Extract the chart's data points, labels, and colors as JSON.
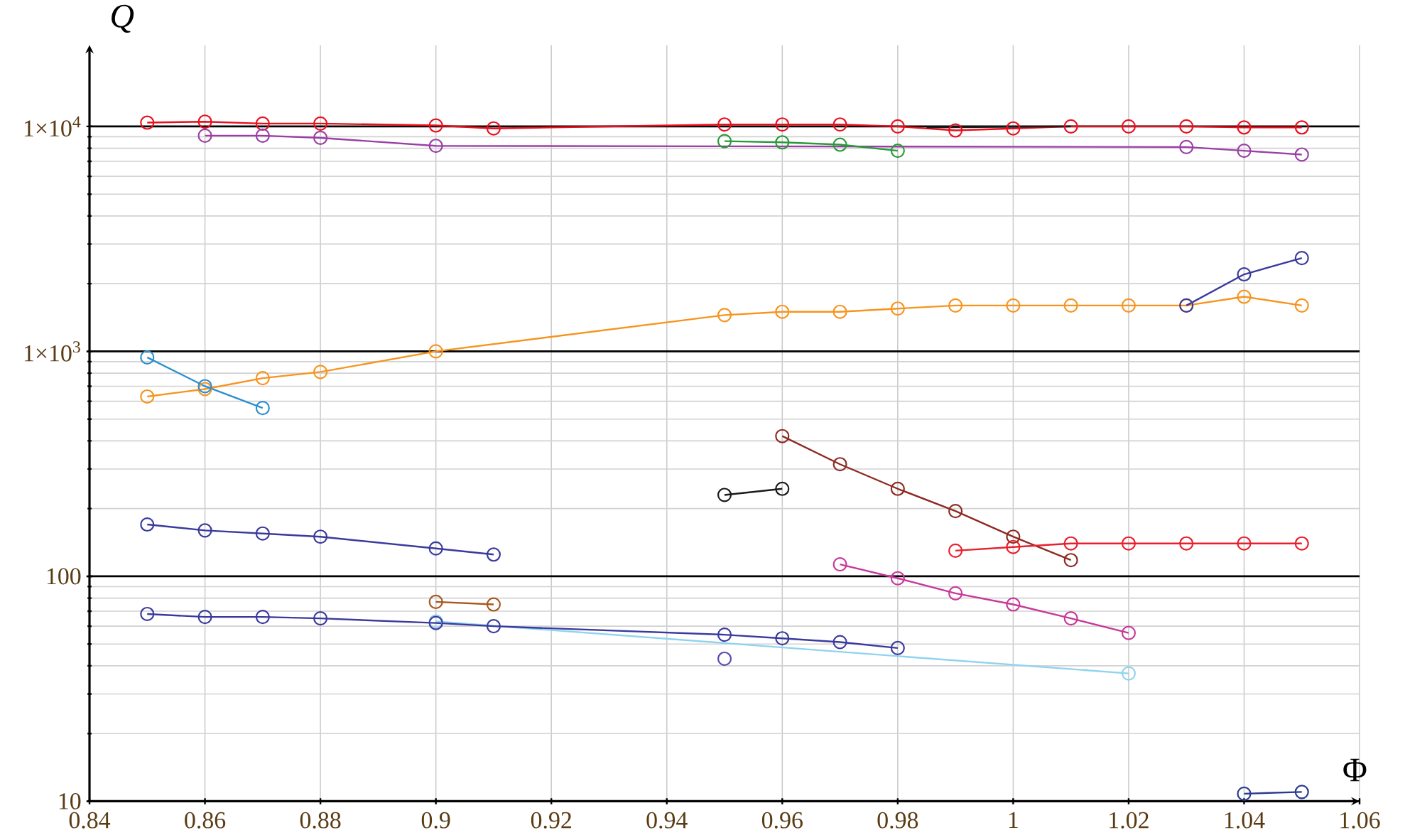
{
  "chart_data": {
    "type": "line",
    "xlabel": "Φ",
    "ylabel": "Q",
    "log": "y",
    "grid": true,
    "marker": "circle",
    "line_style": "solid",
    "xlim": [
      0.84,
      1.06
    ],
    "ylim": [
      10,
      23000
    ],
    "xticks": [
      0.84,
      0.86,
      0.88,
      0.9,
      0.92,
      0.94,
      0.96,
      0.98,
      1,
      1.02,
      1.04,
      1.06
    ],
    "yticks": [
      10,
      100,
      {
        "value": 1000,
        "label": "1×10$^{3}$"
      },
      {
        "value": 10000,
        "label": "1×10$^{4}$"
      }
    ],
    "series": [
      {
        "color": "#e8101e",
        "x": [
          0.85,
          0.86,
          0.87,
          0.88,
          0.9,
          0.91,
          0.95,
          0.96,
          0.97,
          0.98,
          0.99,
          1.0,
          1.01,
          1.02,
          1.03,
          1.04,
          1.05
        ],
        "values": [
          10400,
          10500,
          10300,
          10300,
          10100,
          9800,
          10200,
          10200,
          10200,
          10000,
          9600,
          9800,
          10000,
          10000,
          10000,
          9900,
          9900
        ]
      },
      {
        "color": "#1a1a1a",
        "marker": "none",
        "x": [
          0.985,
          1.01
        ],
        "values": [
          9900,
          10000
        ]
      },
      {
        "color": "#9b3fa6",
        "x": [
          0.86,
          0.87,
          0.88,
          0.9,
          1.03,
          1.04,
          1.05
        ],
        "values": [
          9100,
          9100,
          8900,
          8200,
          8100,
          7800,
          7500
        ]
      },
      {
        "color": "#2a9a3a",
        "x": [
          0.95,
          0.96,
          0.97,
          0.98
        ],
        "values": [
          8600,
          8500,
          8300,
          7800
        ]
      },
      {
        "color": "#f7941d",
        "x": [
          0.85,
          0.86,
          0.87,
          0.88,
          0.9,
          0.95,
          0.96,
          0.97,
          0.98,
          0.99,
          1.0,
          1.01,
          1.02,
          1.03,
          1.04,
          1.05
        ],
        "values": [
          630,
          680,
          760,
          810,
          1000,
          1450,
          1500,
          1500,
          1550,
          1600,
          1600,
          1600,
          1600,
          1600,
          1750,
          1600
        ]
      },
      {
        "color": "#3a3a9e",
        "x": [
          1.03,
          1.04,
          1.05
        ],
        "values": [
          1600,
          2200,
          2600
        ]
      },
      {
        "color": "#2b8fd0",
        "x": [
          0.85,
          0.86,
          0.87
        ],
        "values": [
          940,
          700,
          560
        ]
      },
      {
        "color": "#3a3a9e",
        "x": [
          0.85,
          0.86,
          0.87,
          0.88,
          0.9,
          0.91
        ],
        "values": [
          170,
          160,
          155,
          150,
          133,
          125
        ]
      },
      {
        "color": "#8fd3ef",
        "x": [
          0.9,
          1.02
        ],
        "values": [
          63,
          37
        ]
      },
      {
        "color": "#3a3a9e",
        "x": [
          0.85,
          0.86,
          0.87,
          0.88,
          0.9,
          0.91,
          0.95,
          0.96,
          0.97,
          0.98
        ],
        "values": [
          68,
          66,
          66,
          65,
          62,
          60,
          55,
          53,
          51,
          48
        ]
      },
      {
        "type": "scatter",
        "color": "#5a4ab0",
        "x": [
          0.95
        ],
        "values": [
          43
        ]
      },
      {
        "color": "#a8561e",
        "x": [
          0.9,
          0.91
        ],
        "values": [
          77,
          75
        ]
      },
      {
        "color": "#1a1a1a",
        "x": [
          0.95,
          0.96
        ],
        "values": [
          230,
          245
        ]
      },
      {
        "color": "#8c2a22",
        "x": [
          0.96,
          0.97,
          0.98,
          0.99,
          1.0,
          1.01
        ],
        "values": [
          420,
          315,
          245,
          195,
          150,
          118
        ]
      },
      {
        "color": "#e8202e",
        "x": [
          0.99,
          1.0,
          1.01,
          1.02,
          1.03,
          1.04,
          1.05
        ],
        "values": [
          130,
          135,
          140,
          140,
          140,
          140,
          140
        ]
      },
      {
        "color": "#c8389a",
        "x": [
          0.97,
          0.98,
          0.99,
          1.0,
          1.01,
          1.02
        ],
        "values": [
          113,
          98,
          84,
          75,
          65,
          56
        ]
      },
      {
        "color": "#2a3a8e",
        "x": [
          1.04,
          1.05
        ],
        "values": [
          10.8,
          11
        ]
      }
    ]
  }
}
